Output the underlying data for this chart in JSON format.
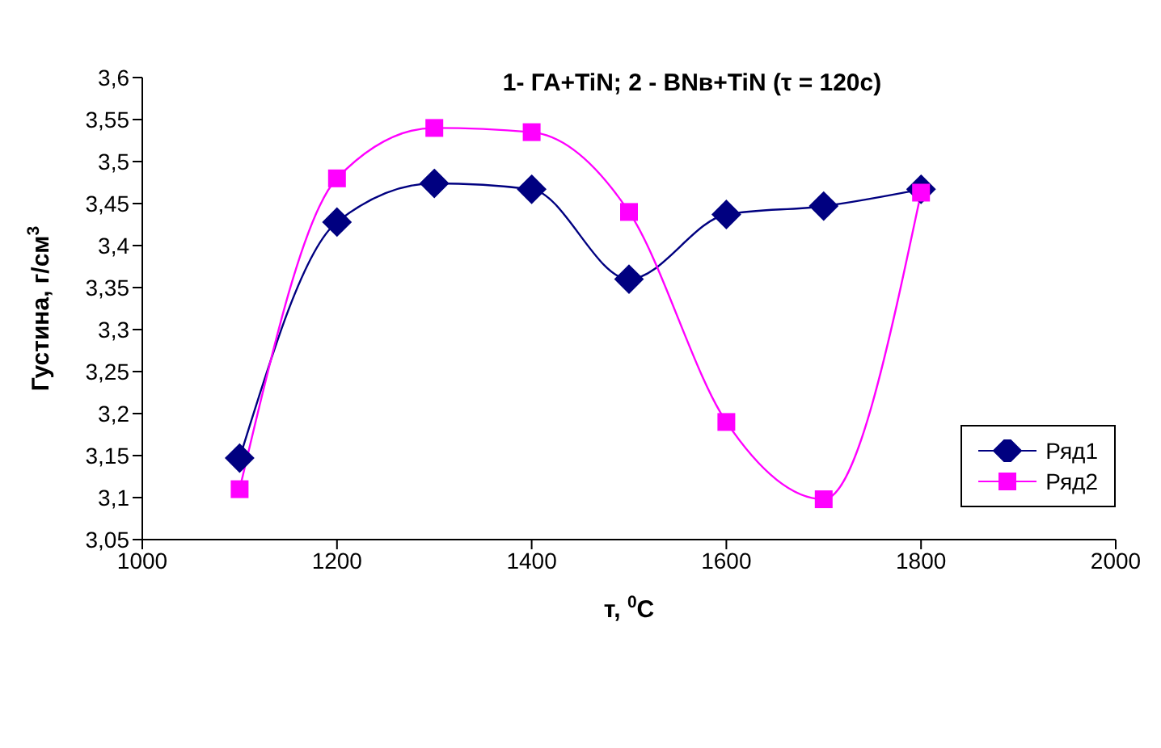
{
  "chart_data": {
    "type": "line",
    "title": "1- ГА+TiN; 2 - BNв+TiN (τ = 120c)",
    "xlabel": "т, $^{0}$C",
    "ylabel": "Густина, г/см$^{3}$",
    "x": [
      1100,
      1200,
      1300,
      1400,
      1500,
      1600,
      1700,
      1800
    ],
    "series": [
      {
        "name": "Ряд1",
        "color": "#000080",
        "marker": "diamond",
        "values": [
          3.147,
          3.428,
          3.474,
          3.467,
          3.36,
          3.437,
          3.447,
          3.467
        ]
      },
      {
        "name": "Ряд2",
        "color": "#ff00ff",
        "marker": "square",
        "values": [
          3.11,
          3.48,
          3.54,
          3.535,
          3.44,
          3.19,
          3.098,
          3.463
        ]
      }
    ],
    "xlim": [
      1000,
      2000
    ],
    "xticks": [
      1000,
      1200,
      1400,
      1600,
      1800,
      2000
    ],
    "ylim": [
      3.05,
      3.6
    ],
    "yticks": [
      {
        "value": 3.05,
        "label": "3,05"
      },
      {
        "value": 3.1,
        "label": "3,1"
      },
      {
        "value": 3.15,
        "label": "3,15"
      },
      {
        "value": 3.2,
        "label": "3,2"
      },
      {
        "value": 3.25,
        "label": "3,25"
      },
      {
        "value": 3.3,
        "label": "3,3"
      },
      {
        "value": 3.35,
        "label": "3,35"
      },
      {
        "value": 3.4,
        "label": "3,4"
      },
      {
        "value": 3.45,
        "label": "3,45"
      },
      {
        "value": 3.5,
        "label": "3,5"
      },
      {
        "value": 3.55,
        "label": "3,55"
      },
      {
        "value": 3.6,
        "label": "3,6"
      }
    ],
    "grid": false,
    "legend": "right"
  }
}
